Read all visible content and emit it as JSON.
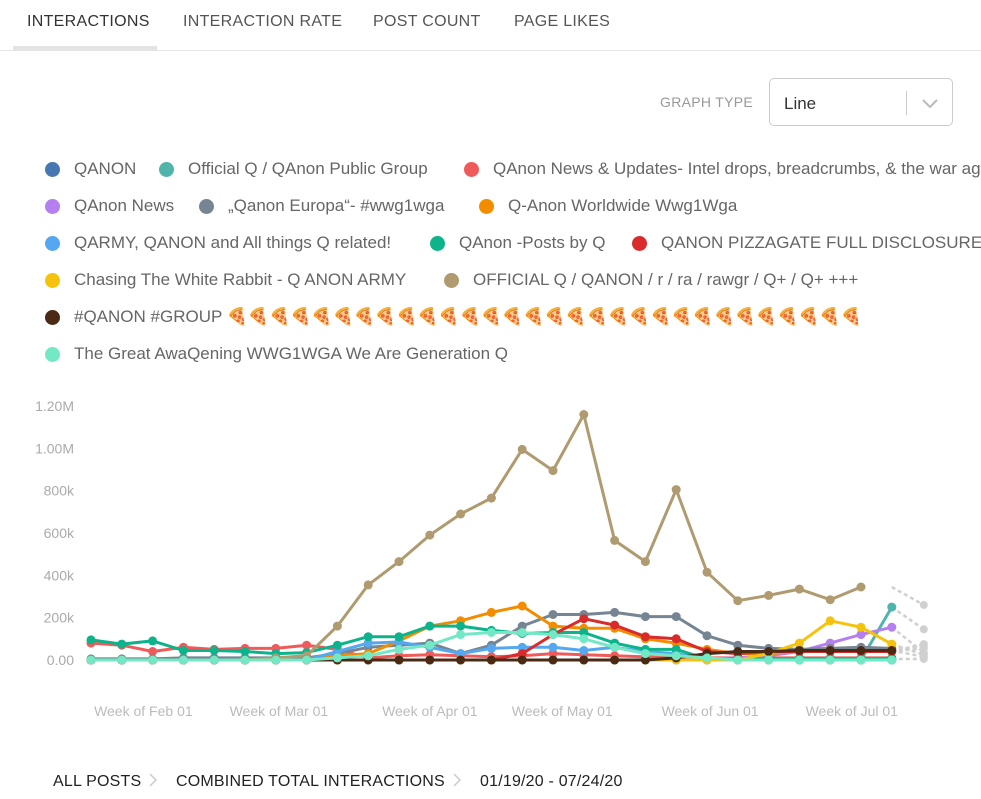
{
  "tabs": [
    {
      "label": "INTERACTIONS",
      "active": true
    },
    {
      "label": "INTERACTION RATE",
      "active": false
    },
    {
      "label": "POST COUNT",
      "active": false
    },
    {
      "label": "PAGE LIKES",
      "active": false
    }
  ],
  "graph_type": {
    "label": "GRAPH TYPE",
    "value": "Line"
  },
  "breadcrumb": {
    "all_posts": "ALL POSTS",
    "metric": "COMBINED TOTAL INTERACTIONS",
    "date_range": "01/19/20 - 07/24/20"
  },
  "chart_data": {
    "type": "line",
    "title": "",
    "xlabel": "",
    "ylabel": "",
    "ylim": [
      0,
      1200000
    ],
    "y_ticks": [
      0,
      200000,
      400000,
      600000,
      800000,
      1000000,
      1200000
    ],
    "y_tick_labels": [
      "0.00",
      "200k",
      "400k",
      "600k",
      "800k",
      "1.00M",
      "1.20M"
    ],
    "x_tick_labels": [
      "Week of Feb 01",
      "Week of Mar 01",
      "Week of Apr 01",
      "Week of May 01",
      "Week of Jun 01",
      "Week of Jul 01"
    ],
    "x_tick_weeks": [
      1.7,
      6.1,
      11.0,
      15.3,
      20.1,
      24.7
    ],
    "weeks": 27,
    "partial_week_color": "#d0d0d0",
    "series": [
      {
        "name": "QANON",
        "color": "#4679b2",
        "values": [
          0,
          0,
          0,
          0,
          0,
          0,
          0,
          0,
          0,
          0,
          0,
          0,
          0,
          0,
          0,
          0,
          0,
          0,
          0,
          0,
          0,
          0,
          0,
          0,
          0,
          0,
          0
        ]
      },
      {
        "name": "Official Q / QAnon Public Group",
        "color": "#4fb4a9",
        "values": [
          0,
          0,
          0,
          0,
          0,
          0,
          0,
          0,
          0,
          0,
          0,
          0,
          0,
          0,
          0,
          0,
          0,
          0,
          0,
          0,
          0,
          0,
          0,
          0,
          0,
          0,
          250000
        ]
      },
      {
        "name": "QAnon News & Updates- Intel drops, breadcrumbs, & the war against the Cabal",
        "color": "#ef5b5b",
        "values": [
          80000,
          70000,
          40000,
          60000,
          50000,
          55000,
          55000,
          70000,
          50000,
          10000,
          20000,
          25000,
          20000,
          15000,
          20000,
          30000,
          25000,
          20000,
          15000,
          10000,
          10000,
          10000,
          10000,
          10000,
          10000,
          10000,
          10000
        ]
      },
      {
        "name": "QAnon News",
        "color": "#b57ff0",
        "values": [
          0,
          0,
          0,
          0,
          0,
          0,
          0,
          0,
          0,
          0,
          0,
          0,
          0,
          0,
          0,
          0,
          0,
          0,
          0,
          0,
          5000,
          10000,
          20000,
          40000,
          80000,
          120000,
          155000
        ]
      },
      {
        "name": "„Qanon Europa“- #wwg1wga",
        "color": "#768593",
        "values": [
          5000,
          5000,
          5000,
          10000,
          10000,
          10000,
          10000,
          10000,
          30000,
          60000,
          70000,
          80000,
          30000,
          70000,
          160000,
          215000,
          215000,
          225000,
          205000,
          205000,
          115000,
          70000,
          55000,
          50000,
          55000,
          60000,
          55000
        ]
      },
      {
        "name": "Q-Anon Worldwide Wwg1Wga",
        "color": "#f28d00",
        "values": [
          0,
          0,
          0,
          0,
          0,
          0,
          0,
          0,
          20000,
          30000,
          90000,
          160000,
          185000,
          225000,
          255000,
          160000,
          150000,
          150000,
          100000,
          80000,
          50000,
          30000,
          30000,
          40000,
          45000,
          40000,
          40000
        ]
      },
      {
        "name": "QARMY, QANON and All things Q related!",
        "color": "#55a8f0",
        "values": [
          0,
          0,
          0,
          0,
          0,
          0,
          0,
          0,
          40000,
          80000,
          85000,
          60000,
          30000,
          55000,
          60000,
          60000,
          45000,
          60000,
          40000,
          30000,
          5000,
          0,
          0,
          0,
          0,
          0,
          0
        ]
      },
      {
        "name": "QAnon -Posts by Q",
        "color": "#0db38a",
        "values": [
          95000,
          75000,
          90000,
          45000,
          45000,
          40000,
          30000,
          35000,
          70000,
          110000,
          110000,
          160000,
          160000,
          140000,
          125000,
          130000,
          130000,
          80000,
          50000,
          50000,
          5000,
          5000,
          5000,
          5000,
          5000,
          5000,
          5000
        ]
      },
      {
        "name": "QANON PIZZAGATE FULL DISCLOSURE QANON",
        "color": "#d92b2b",
        "values": [
          0,
          0,
          0,
          0,
          0,
          0,
          0,
          0,
          0,
          0,
          0,
          0,
          0,
          0,
          30000,
          120000,
          195000,
          165000,
          110000,
          100000,
          40000,
          30000,
          40000,
          40000,
          40000,
          40000,
          40000
        ]
      },
      {
        "name": "Chasing The White Rabbit - Q ANON ARMY",
        "color": "#f5c30e",
        "values": [
          0,
          0,
          0,
          0,
          0,
          0,
          0,
          0,
          0,
          0,
          0,
          0,
          0,
          0,
          0,
          0,
          0,
          0,
          0,
          0,
          0,
          0,
          30000,
          80000,
          185000,
          155000,
          75000
        ]
      },
      {
        "name": "OFFICIAL Q / QANON / r / ra / rawgr / Q+ / Q+ +++",
        "color": "#b09a6f",
        "values": [
          0,
          0,
          0,
          0,
          0,
          0,
          10000,
          20000,
          160000,
          355000,
          465000,
          590000,
          690000,
          765000,
          995000,
          895000,
          1160000,
          565000,
          465000,
          805000,
          415000,
          280000,
          305000,
          335000,
          285000,
          345000,
          0
        ]
      },
      {
        "name": "#QANON #GROUP 🍕🍕🍕🍕🍕🍕🍕🍕🍕🍕🍕🍕🍕🍕🍕🍕🍕🍕🍕🍕🍕🍕🍕🍕🍕🍕🍕🍕🍕🍕",
        "color": "#4a2a14",
        "values": [
          0,
          0,
          0,
          0,
          0,
          0,
          0,
          0,
          0,
          0,
          0,
          0,
          0,
          0,
          0,
          0,
          0,
          0,
          0,
          10000,
          30000,
          40000,
          40000,
          45000,
          45000,
          45000,
          45000
        ]
      },
      {
        "name": "The Great AwaQening WWG1WGA We Are Generation Q",
        "color": "#73e8c4",
        "values": [
          0,
          0,
          0,
          0,
          0,
          0,
          0,
          0,
          10000,
          20000,
          50000,
          70000,
          120000,
          130000,
          130000,
          120000,
          100000,
          60000,
          30000,
          20000,
          10000,
          0,
          0,
          0,
          0,
          0,
          0
        ]
      }
    ],
    "partial_week_values": [
      260000,
      145000,
      75000,
      60000,
      55000,
      35000,
      25000,
      15000,
      5000
    ]
  }
}
